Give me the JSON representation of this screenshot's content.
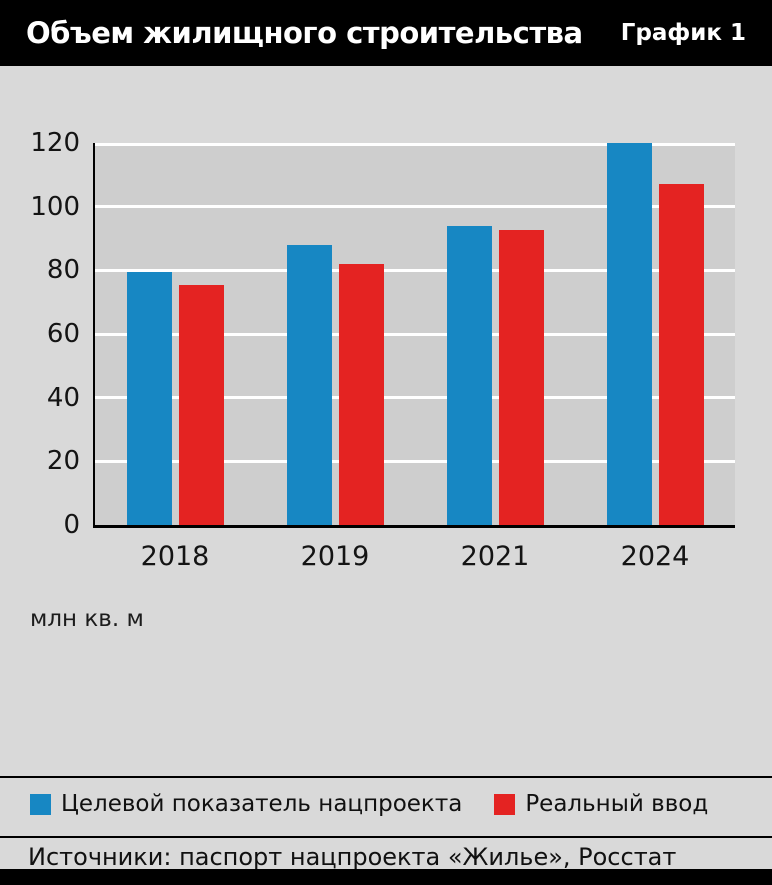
{
  "header": {
    "title": "Объем жилищного строительства",
    "badge": "График 1"
  },
  "chart_data": {
    "type": "bar",
    "categories": [
      "2018",
      "2019",
      "2021",
      "2024"
    ],
    "series": [
      {
        "name": "Целевой показатель нацпроекта",
        "color": "#1787c3",
        "values": [
          79.5,
          88,
          94,
          120
        ]
      },
      {
        "name": "Реальный ввод",
        "color": "#e42322",
        "values": [
          75.3,
          82,
          92.6,
          107
        ]
      }
    ],
    "title": "Объем жилищного строительства",
    "xlabel": "",
    "ylabel": "",
    "unit_label": "млн кв. м",
    "ylim": [
      0,
      120
    ],
    "ytick_step": 20,
    "grid": true,
    "legend_position": "bottom"
  },
  "footer": {
    "source": "Источники: паспорт нацпроекта «Жилье», Росстат"
  }
}
